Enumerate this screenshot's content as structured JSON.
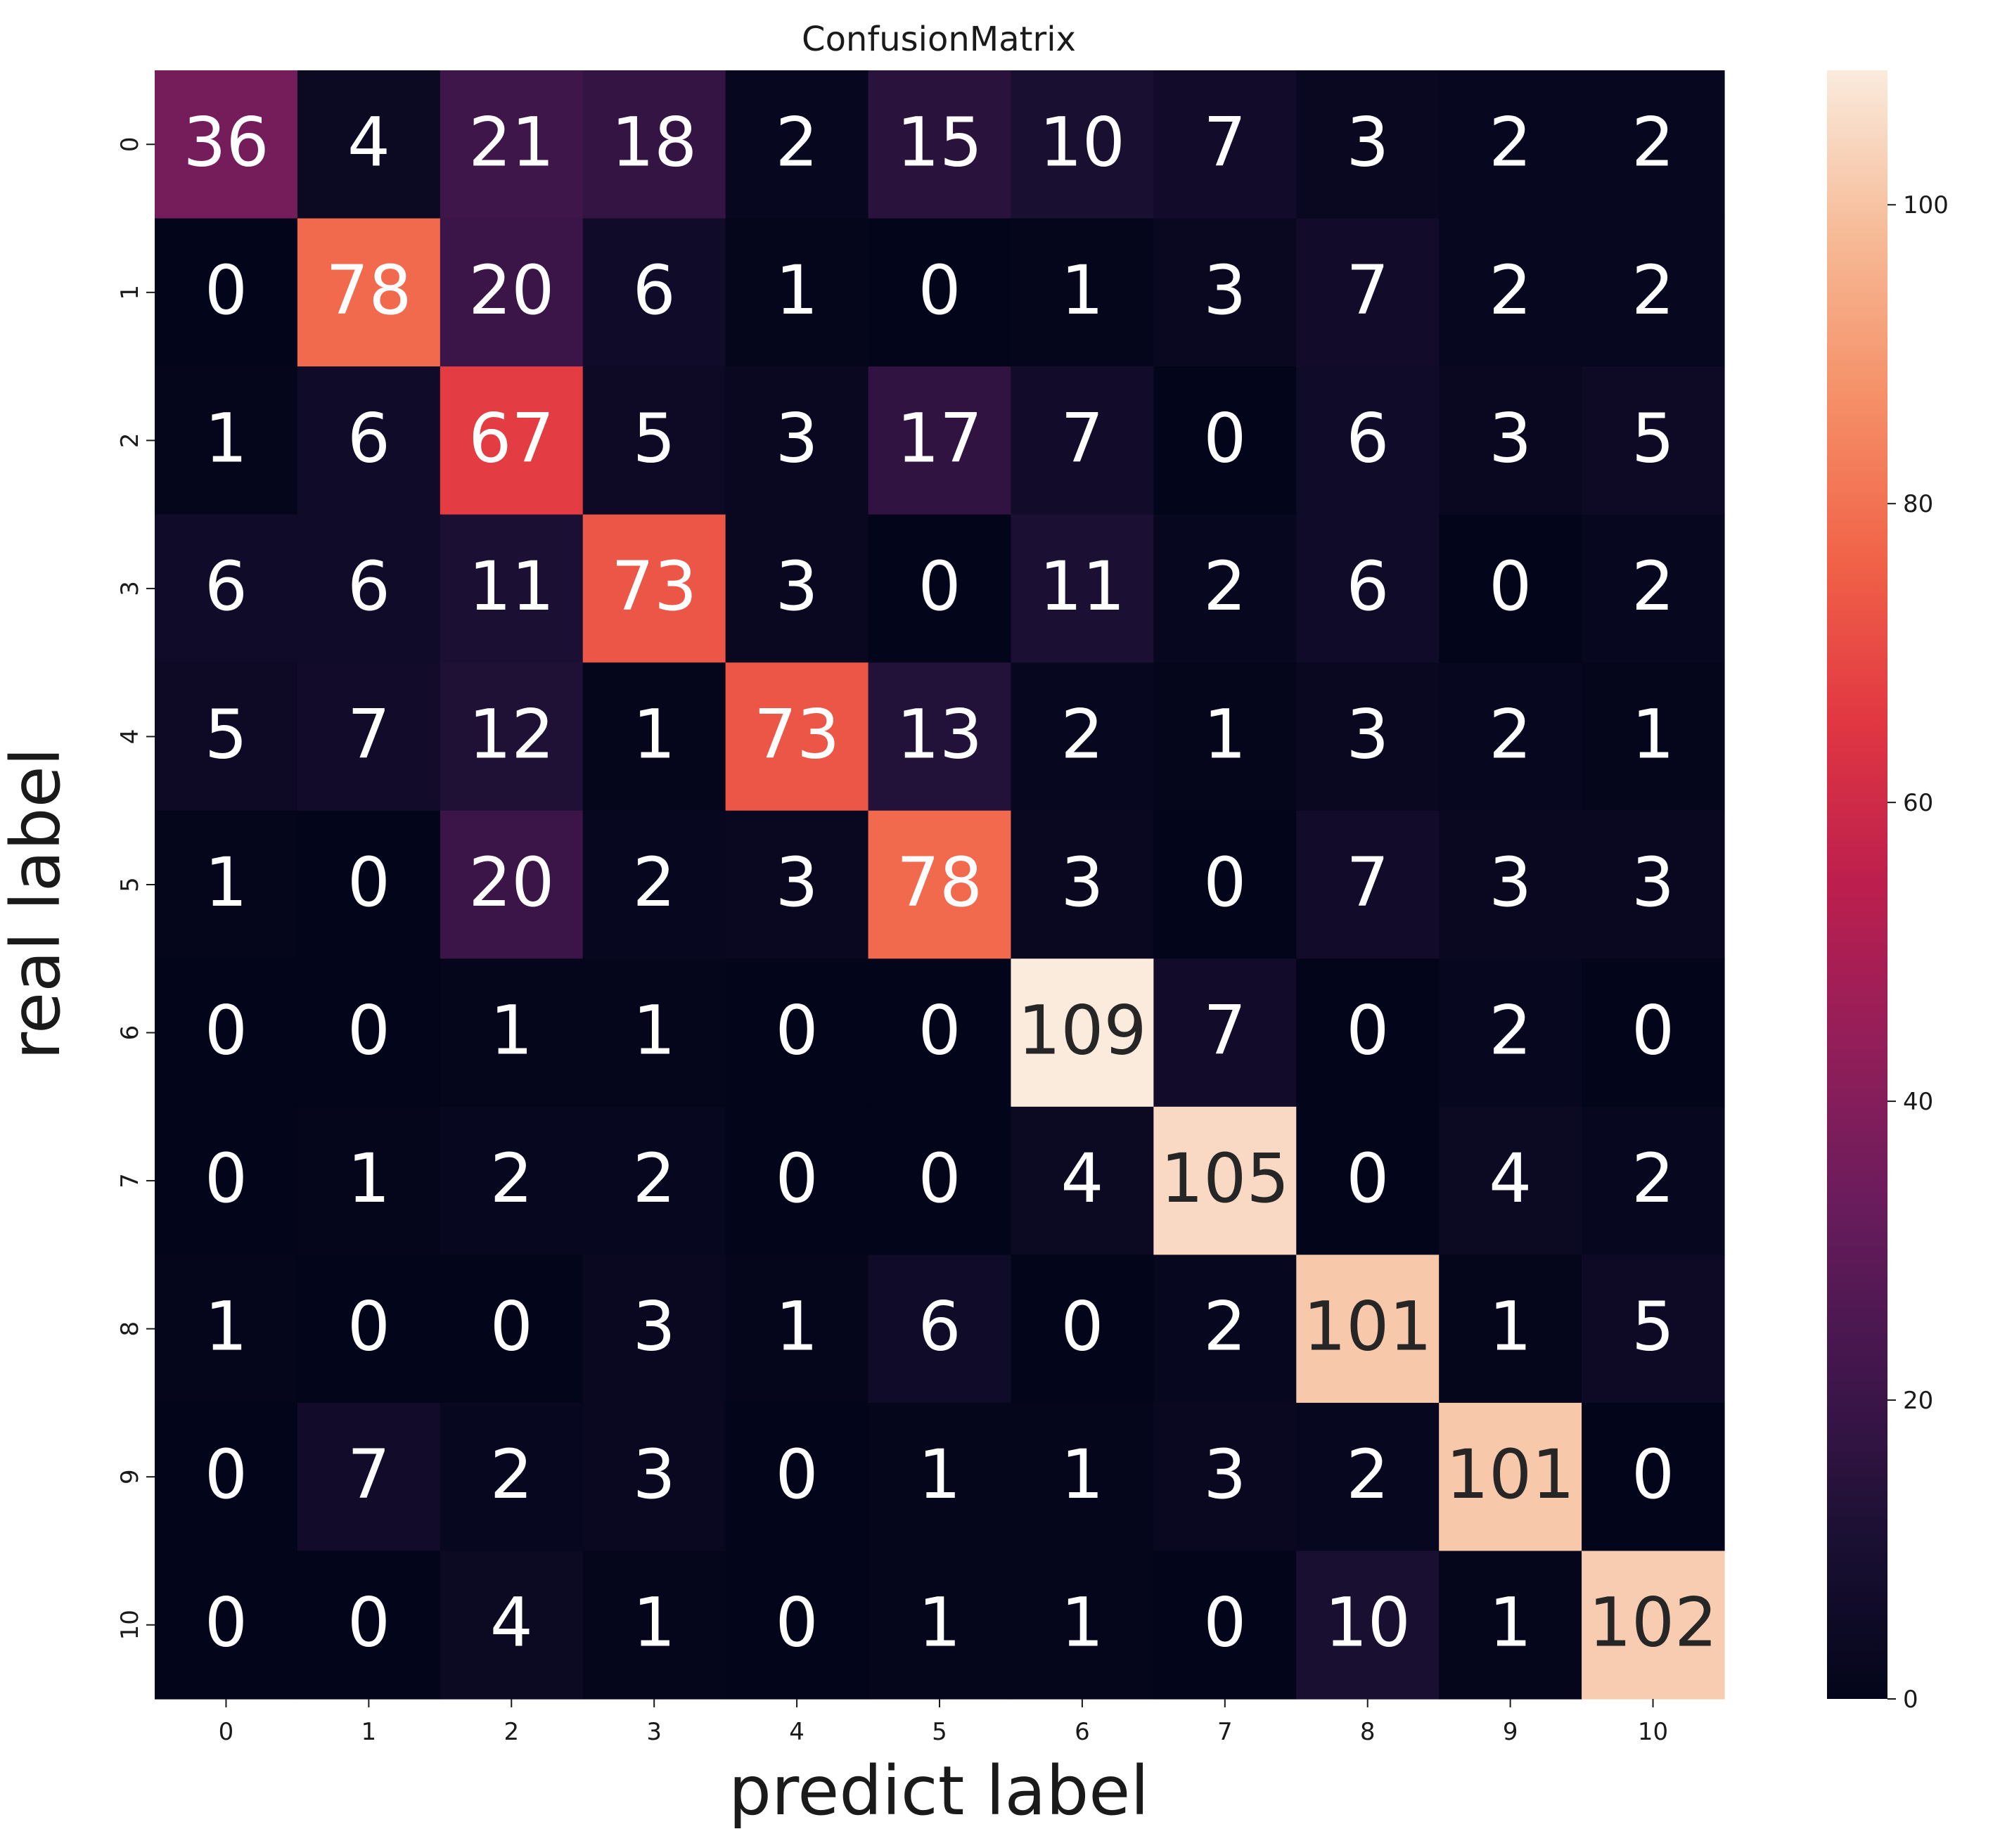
{
  "chart_data": {
    "type": "heatmap",
    "title": "ConfusionMatrix",
    "xlabel": "predict label",
    "ylabel": "real label",
    "x_tick_labels": [
      "0",
      "1",
      "2",
      "3",
      "4",
      "5",
      "6",
      "7",
      "8",
      "9",
      "10"
    ],
    "y_tick_labels": [
      "0",
      "1",
      "2",
      "3",
      "4",
      "5",
      "6",
      "7",
      "8",
      "9",
      "10"
    ],
    "matrix": [
      [
        36,
        4,
        21,
        18,
        2,
        15,
        10,
        7,
        3,
        2,
        2
      ],
      [
        0,
        78,
        20,
        6,
        1,
        0,
        1,
        3,
        7,
        2,
        2
      ],
      [
        1,
        6,
        67,
        5,
        3,
        17,
        7,
        0,
        6,
        3,
        5
      ],
      [
        6,
        6,
        11,
        73,
        3,
        0,
        11,
        2,
        6,
        0,
        2
      ],
      [
        5,
        7,
        12,
        1,
        73,
        13,
        2,
        1,
        3,
        2,
        1
      ],
      [
        1,
        0,
        20,
        2,
        3,
        78,
        3,
        0,
        7,
        3,
        3
      ],
      [
        0,
        0,
        1,
        1,
        0,
        0,
        109,
        7,
        0,
        2,
        0
      ],
      [
        0,
        1,
        2,
        2,
        0,
        0,
        4,
        105,
        0,
        4,
        2
      ],
      [
        1,
        0,
        0,
        3,
        1,
        6,
        0,
        2,
        101,
        1,
        5
      ],
      [
        0,
        7,
        2,
        3,
        0,
        1,
        1,
        3,
        2,
        101,
        0
      ],
      [
        0,
        0,
        4,
        1,
        0,
        1,
        1,
        0,
        10,
        1,
        102
      ]
    ],
    "colorbar": {
      "min": 0,
      "max": 109,
      "ticks": [
        0,
        20,
        40,
        60,
        80,
        100
      ],
      "tick_labels": [
        "0",
        "20",
        "40",
        "60",
        "80",
        "100"
      ],
      "colormap": "rocket"
    }
  }
}
